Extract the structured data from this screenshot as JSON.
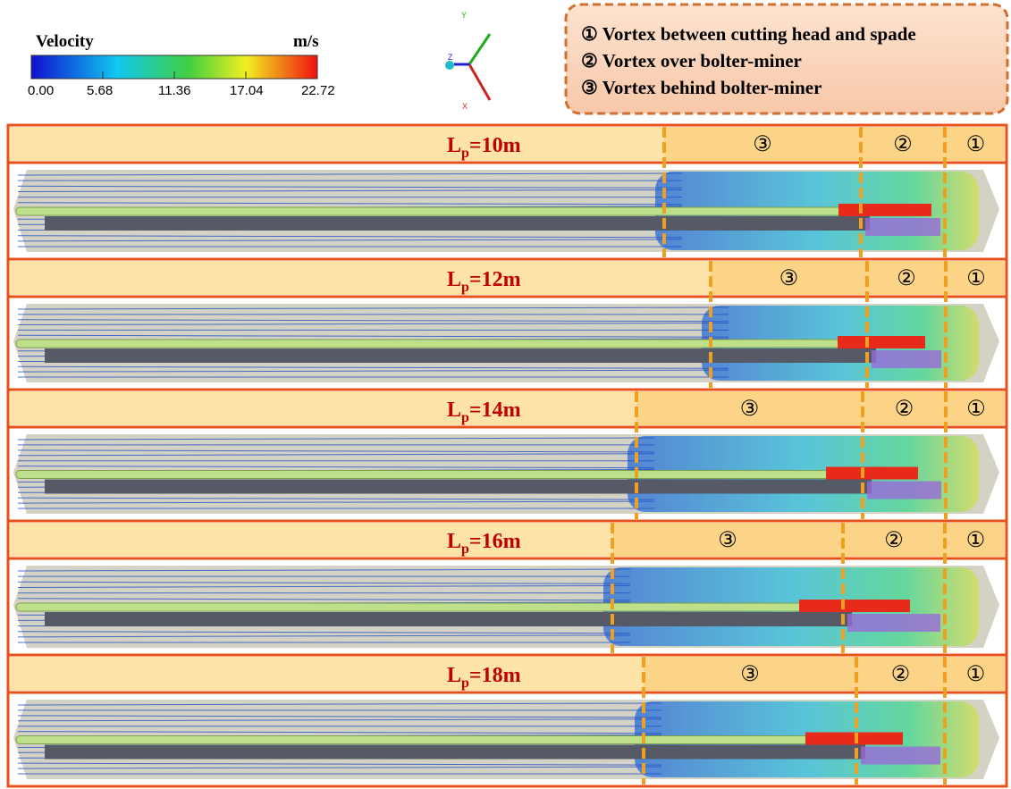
{
  "colorbar": {
    "title": "Velocity",
    "unit": "m/s",
    "range": [
      0,
      22.72
    ],
    "ticks": [
      {
        "value": 0,
        "label": "0.00"
      },
      {
        "value": 5.68,
        "label": "5.68"
      },
      {
        "value": 11.36,
        "label": "11.36"
      },
      {
        "value": 17.04,
        "label": "17.04"
      },
      {
        "value": 22.72,
        "label": "22.72"
      }
    ]
  },
  "axes": {
    "labels": [
      "Y",
      "Z",
      "X"
    ]
  },
  "legend": {
    "items": [
      "① Vortex between cutting head and spade",
      "② Vortex over bolter-miner",
      "③ Vortex behind bolter-miner"
    ]
  },
  "panels": [
    {
      "label": {
        "main": "L",
        "sub": "p",
        "rest": "=10m"
      },
      "zones": [
        "③",
        "②",
        "①"
      ]
    },
    {
      "label": {
        "main": "L",
        "sub": "p",
        "rest": "=12m"
      },
      "zones": [
        "③",
        "②",
        "①"
      ]
    },
    {
      "label": {
        "main": "L",
        "sub": "p",
        "rest": "=14m"
      },
      "zones": [
        "③",
        "②",
        "①"
      ]
    },
    {
      "label": {
        "main": "L",
        "sub": "p",
        "rest": "=16m"
      },
      "zones": [
        "③",
        "②",
        "①"
      ]
    },
    {
      "label": {
        "main": "L",
        "sub": "p",
        "rest": "=18m"
      },
      "zones": [
        "③",
        "②",
        "①"
      ]
    }
  ]
}
